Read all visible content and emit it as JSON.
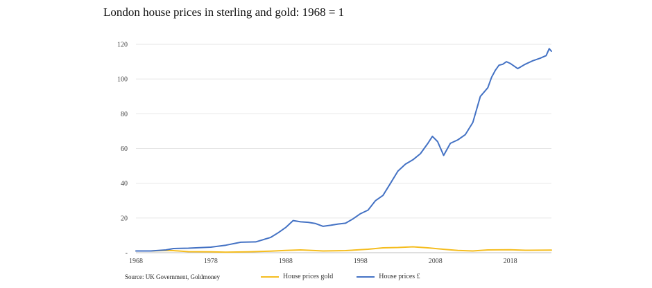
{
  "title": "London house prices in sterling and gold: 1968 = 1",
  "source": "Source: UK Government, Goldmoney",
  "colors": {
    "gold_series": "#f5bd1f",
    "sterling_series": "#4472c4",
    "grid": "#e6e6e6",
    "axis": "#bfbfbf"
  },
  "chart_data": {
    "type": "line",
    "title": "London house prices in sterling and gold: 1968 = 1",
    "xlabel": "",
    "ylabel": "",
    "xlim": [
      1968,
      2023.5
    ],
    "ylim": [
      0,
      120
    ],
    "x_ticks": [
      "1968",
      "1978",
      "1988",
      "1998",
      "2008",
      "2018"
    ],
    "y_ticks": [
      "-",
      "20",
      "40",
      "60",
      "80",
      "100",
      "120"
    ],
    "grid": "horizontal",
    "legend": "bottom",
    "series": [
      {
        "name": "House prices  gold",
        "color": "#f5bd1f",
        "x": [
          1968,
          1970,
          1972,
          1973,
          1975,
          1978,
          1980,
          1983,
          1986,
          1988,
          1990,
          1993,
          1996,
          1999,
          2001,
          2003,
          2005,
          2007,
          2009,
          2011,
          2013,
          2015,
          2018,
          2020,
          2023.5
        ],
        "y": [
          1.0,
          1.0,
          1.3,
          1.2,
          0.6,
          0.5,
          0.3,
          0.5,
          0.9,
          1.3,
          1.6,
          1.0,
          1.2,
          2.0,
          2.8,
          3.0,
          3.4,
          2.8,
          2.0,
          1.3,
          1.0,
          1.6,
          1.7,
          1.4,
          1.5
        ]
      },
      {
        "name": "House prices £",
        "color": "#4472c4",
        "x": [
          1968,
          1970,
          1972,
          1973,
          1975,
          1978,
          1980,
          1982,
          1984,
          1986,
          1987,
          1988,
          1989,
          1990,
          1991,
          1992,
          1993,
          1994,
          1995,
          1996,
          1997,
          1998,
          1999,
          2000,
          2001,
          2002,
          2003,
          2004,
          2005,
          2006,
          2007,
          2007.6,
          2008.3,
          2009.1,
          2010,
          2011,
          2012,
          2013,
          2014,
          2015,
          2015.5,
          2016,
          2016.5,
          2017,
          2017.5,
          2018,
          2019,
          2020,
          2021,
          2022,
          2022.8,
          2023.2,
          2023.5
        ],
        "y": [
          1.0,
          1.0,
          1.6,
          2.4,
          2.6,
          3.2,
          4.3,
          6.0,
          6.2,
          8.8,
          11.5,
          14.5,
          18.5,
          17.8,
          17.5,
          16.8,
          15.2,
          15.8,
          16.5,
          17.0,
          19.5,
          22.5,
          24.5,
          30.0,
          33.0,
          40.0,
          47.0,
          51.0,
          53.5,
          57.0,
          63.0,
          67.0,
          64.0,
          56.0,
          63.0,
          65.0,
          68.0,
          75.0,
          90.0,
          95.0,
          101.0,
          105.0,
          108.0,
          108.5,
          110.0,
          109.0,
          106.0,
          108.5,
          110.5,
          112.0,
          113.5,
          117.5,
          116.0
        ]
      }
    ]
  }
}
